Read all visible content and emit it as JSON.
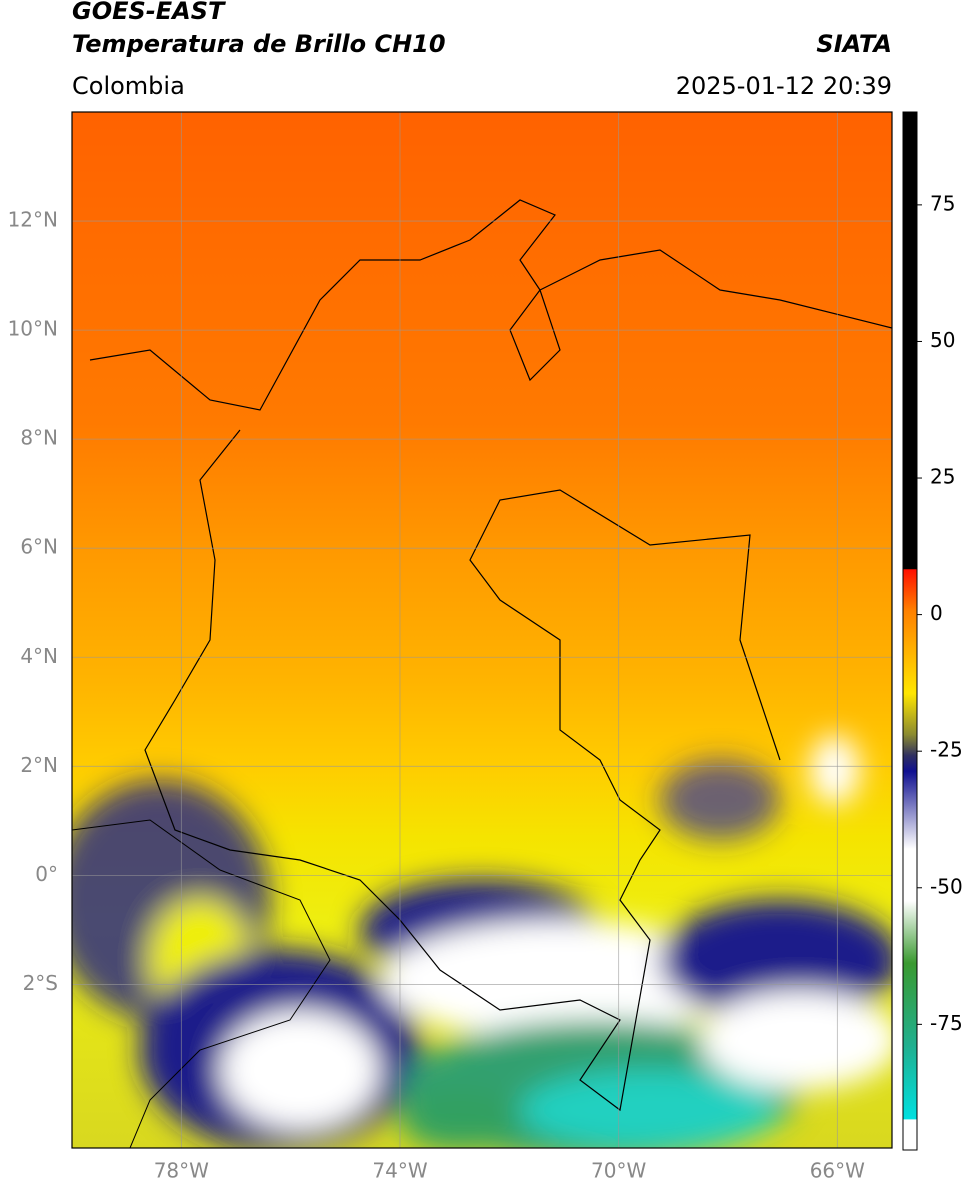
{
  "header": {
    "title_line1": "GOES-EAST",
    "title_line2": "Temperatura de Brillo CH10",
    "source": "SIATA",
    "region": "Colombia",
    "timestamp": "2025-01-12 20:39"
  },
  "map": {
    "xlim": [
      -80,
      -65
    ],
    "ylim": [
      -5,
      14
    ],
    "yticks": [
      {
        "value": 12,
        "label": "12°N"
      },
      {
        "value": 10,
        "label": "10°N"
      },
      {
        "value": 8,
        "label": "8°N"
      },
      {
        "value": 6,
        "label": "6°N"
      },
      {
        "value": 4,
        "label": "4°N"
      },
      {
        "value": 2,
        "label": "2°N"
      },
      {
        "value": 0,
        "label": "0°"
      },
      {
        "value": -2,
        "label": "2°S"
      }
    ],
    "xticks": [
      {
        "value": -78,
        "label": "78°W"
      },
      {
        "value": -74,
        "label": "74°W"
      },
      {
        "value": -70,
        "label": "70°W"
      },
      {
        "value": -66,
        "label": "66°W"
      }
    ],
    "grid": true
  },
  "colorbar": {
    "lim": [
      -98,
      92
    ],
    "ticks": [
      75,
      50,
      25,
      0,
      -25,
      -50,
      -75
    ]
  }
}
